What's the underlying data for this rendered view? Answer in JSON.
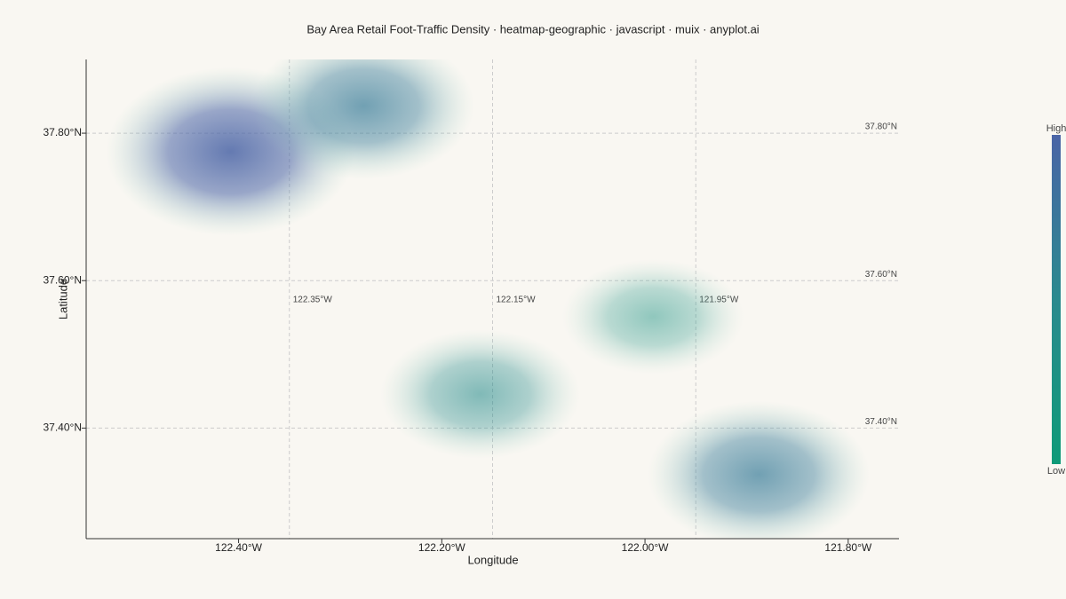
{
  "chart_data": {
    "type": "heatmap-geographic",
    "title": "Bay Area Retail Foot-Traffic Density · heatmap-geographic · javascript · muix · anyplot.ai",
    "x_label": "Longitude",
    "y_label": "Latitude",
    "xlim": [
      -122.55,
      -121.75
    ],
    "ylim": [
      37.25,
      37.9
    ],
    "xticks": [
      {
        "value": -122.4,
        "label": "122.40°W"
      },
      {
        "value": -122.2,
        "label": "122.20°W"
      },
      {
        "value": -122.0,
        "label": "122.00°W"
      },
      {
        "value": -121.8,
        "label": "121.80°W"
      }
    ],
    "yticks": [
      {
        "value": 37.4,
        "label": "37.40°N"
      },
      {
        "value": 37.6,
        "label": "37.60°N"
      },
      {
        "value": 37.8,
        "label": "37.80°N"
      }
    ],
    "graticule_lon": [
      {
        "value": -122.35,
        "label": "122.35°W"
      },
      {
        "value": -122.15,
        "label": "122.15°W"
      },
      {
        "value": -121.95,
        "label": "121.95°W"
      }
    ],
    "graticule_lat": [
      {
        "value": 37.4,
        "label": "37.40°N"
      },
      {
        "value": 37.6,
        "label": "37.60°N"
      },
      {
        "value": 37.8,
        "label": "37.80°N"
      }
    ],
    "points": [
      {
        "lon": -122.408,
        "lat": 37.775,
        "intensity": 1.0
      },
      {
        "lon": -122.277,
        "lat": 37.837,
        "intensity": 0.7
      },
      {
        "lon": -122.162,
        "lat": 37.446,
        "intensity": 0.45
      },
      {
        "lon": -121.992,
        "lat": 37.551,
        "intensity": 0.25
      },
      {
        "lon": -121.888,
        "lat": 37.337,
        "intensity": 0.7
      }
    ],
    "colormap": [
      "#0e9a78",
      "#2a8a8e",
      "#4a64a6"
    ],
    "colorbar_high": "High",
    "colorbar_low": "Low"
  }
}
